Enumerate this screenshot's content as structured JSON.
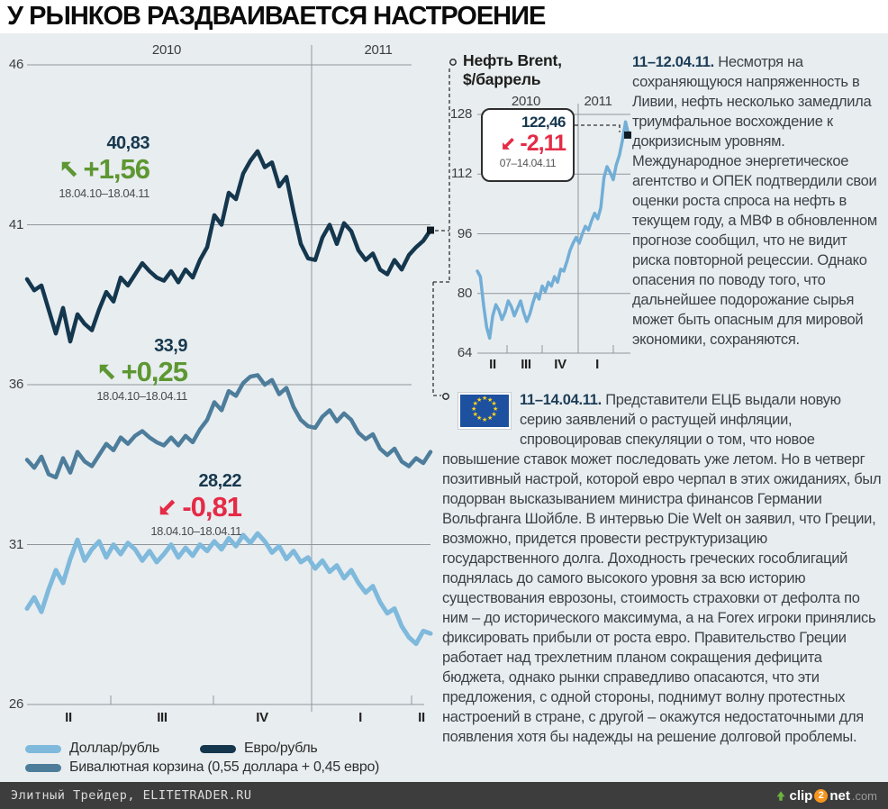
{
  "title": "У РЫНКОВ РАЗДВАИВАЕТСЯ НАСТРОЕНИЕ",
  "articles": [
    {
      "date_prefix": "11–12.04.11.",
      "text": "Несмотря на сохраняющуюся напряженность в Ливии, нефть несколько замедлила триумфальное восхождение к докризисным уровням. Международное энергетическое агентство и ОПЕК подтвердили свои оценки роста спроса на нефть в текущем году, а МВФ в обновленном прогнозе сообщил, что не видит риска повторной рецессии. Однако опасения по поводу того, что дальнейшее подорожание сырья может быть опасным для мировой экономики, сохраняются."
    },
    {
      "date_prefix": "11–14.04.11.",
      "text": "Представители ЕЦБ выдали новую серию заявлений о растущей инфляции, спровоцировав спекуляции о том, что новое повышение ставок может последовать уже летом. Но в четверг позитивный настрой, которой евро черпал в этих ожиданиях, был подорван высказыванием министра финансов Германии Вольфганга Шойбле. В интервью Die Welt он заявил, что Греции, возможно, придется провести реструктуризацию государственного долга. Доходность греческих гособлигаций поднялась до самого высокого уровня за всю историю существования еврозоны, стоимость страховки от дефолта по ним – до исторического максимума, а на Forex игроки принялись фиксировать прибыли от роста евро. Правительство Греции работает над трехлетним планом сокращения дефицита бюджета, однако рынки справедливо опасаются, что эти предложения, с одной стороны, поднимут волну протестных настроений в стране, с другой – окажутся недостаточными для появления хотя бы надежды на решение долговой проблемы."
    }
  ],
  "legend": [
    {
      "label": "Доллар/рубль",
      "color": "#7fb9dc"
    },
    {
      "label": "Евро/рубль",
      "color": "#14374e"
    },
    {
      "label": "Бивалютная корзина (0,55 доллара + 0,45 евро)",
      "color": "#4d7d9b"
    }
  ],
  "eu_flag": {
    "stars": 12,
    "bg": "#1e50a0",
    "star_color": "#ffd617"
  },
  "footer": {
    "source": "Элитный Трейдер, ELITETRADER.RU",
    "logo": {
      "clip": "clip",
      "two": "2",
      "net": "net",
      "com": ".com"
    }
  },
  "chart_data": [
    {
      "type": "line",
      "name": "currencies-vs-ruble",
      "ylim": [
        26,
        46
      ],
      "y_ticks": [
        46,
        41,
        36,
        31,
        26
      ],
      "year_labels": [
        "2010",
        "2011"
      ],
      "x_quarter_labels": [
        "II",
        "III",
        "IV",
        "I",
        "II"
      ],
      "period": "18.04.10–18.04.11",
      "series": [
        {
          "name": "Доллар/рубль",
          "color": "#7fb9dc",
          "end_value_label": "28,22",
          "change_label": "-0,81",
          "direction": "down",
          "values": [
            29.0,
            29.35,
            28.9,
            29.6,
            30.2,
            29.8,
            30.55,
            31.15,
            30.5,
            30.85,
            31.1,
            30.6,
            31.0,
            30.7,
            31.05,
            30.85,
            30.5,
            30.8,
            30.45,
            30.7,
            31.0,
            30.6,
            30.9,
            30.65,
            31.0,
            30.8,
            31.1,
            30.85,
            31.2,
            30.95,
            31.3,
            31.05,
            31.35,
            31.1,
            30.75,
            30.95,
            30.55,
            30.8,
            30.45,
            30.6,
            30.25,
            30.5,
            30.15,
            30.35,
            29.95,
            30.2,
            29.8,
            29.5,
            29.7,
            29.2,
            28.85,
            29.0,
            28.45,
            28.1,
            27.9,
            28.3,
            28.22
          ]
        },
        {
          "name": "Евро/рубль",
          "color": "#14374e",
          "end_value_label": "40,83",
          "change_label": "+1,56",
          "direction": "up",
          "values": [
            39.3,
            38.95,
            39.1,
            38.35,
            37.6,
            38.4,
            37.35,
            38.2,
            37.9,
            37.7,
            38.35,
            38.9,
            38.6,
            39.35,
            39.1,
            39.45,
            39.8,
            39.55,
            39.35,
            39.25,
            39.55,
            39.2,
            39.6,
            39.35,
            39.9,
            40.3,
            41.3,
            41.0,
            42.0,
            41.8,
            42.6,
            43.0,
            43.3,
            42.8,
            42.95,
            42.2,
            42.5,
            41.4,
            40.4,
            39.95,
            39.9,
            40.6,
            41.0,
            40.4,
            41.05,
            40.8,
            40.2,
            39.9,
            40.1,
            39.6,
            39.45,
            39.9,
            39.6,
            40.05,
            40.3,
            40.5,
            40.83
          ]
        },
        {
          "name": "Бивалютная корзина (0,55 доллара + 0,45 евро)",
          "color": "#4d7d9b",
          "end_value_label": "33,9",
          "change_label": "+0,25",
          "direction": "up",
          "values": [
            33.65,
            33.4,
            33.75,
            33.2,
            33.1,
            33.7,
            33.25,
            33.9,
            33.6,
            33.45,
            33.8,
            34.15,
            33.95,
            34.35,
            34.15,
            34.4,
            34.55,
            34.35,
            34.2,
            34.1,
            34.35,
            34.1,
            34.4,
            34.2,
            34.6,
            34.9,
            35.45,
            35.2,
            35.8,
            35.65,
            36.05,
            36.25,
            36.3,
            36.0,
            36.15,
            35.7,
            35.9,
            35.3,
            34.9,
            34.7,
            34.65,
            35.0,
            35.2,
            34.85,
            35.1,
            34.9,
            34.5,
            34.3,
            34.45,
            34.0,
            33.8,
            34.0,
            33.6,
            33.45,
            33.7,
            33.55,
            33.9
          ]
        }
      ]
    },
    {
      "type": "line",
      "name": "brent-oil",
      "title": "Нефть Brent, $/баррель",
      "title_lines": [
        "Нефть Brent,",
        "$/баррель"
      ],
      "ylim": [
        64,
        128
      ],
      "y_ticks": [
        128,
        112,
        96,
        80,
        64
      ],
      "year_labels": [
        "2010",
        "2011"
      ],
      "x_quarter_labels": [
        "II",
        "III",
        "IV",
        "I"
      ],
      "callout": {
        "value": "122,46",
        "change": "-2,11",
        "direction": "down",
        "period": "07–14.04.11"
      },
      "series": [
        {
          "name": "Нефть Brent, $/баррель",
          "color": "#72aed6",
          "values": [
            86,
            84.5,
            77,
            71,
            68,
            74,
            77,
            75.5,
            73,
            75,
            78,
            76.5,
            74,
            76,
            78,
            75,
            72.5,
            74.5,
            77.5,
            80,
            78.5,
            82,
            80.5,
            83,
            82,
            84.5,
            83,
            86.5,
            86,
            88.5,
            91.5,
            93.5,
            95,
            93.5,
            96,
            98,
            97,
            99.5,
            101.5,
            100,
            103,
            111,
            114,
            112.5,
            110.5,
            114.5,
            117,
            121,
            126,
            122.46
          ]
        }
      ]
    }
  ]
}
